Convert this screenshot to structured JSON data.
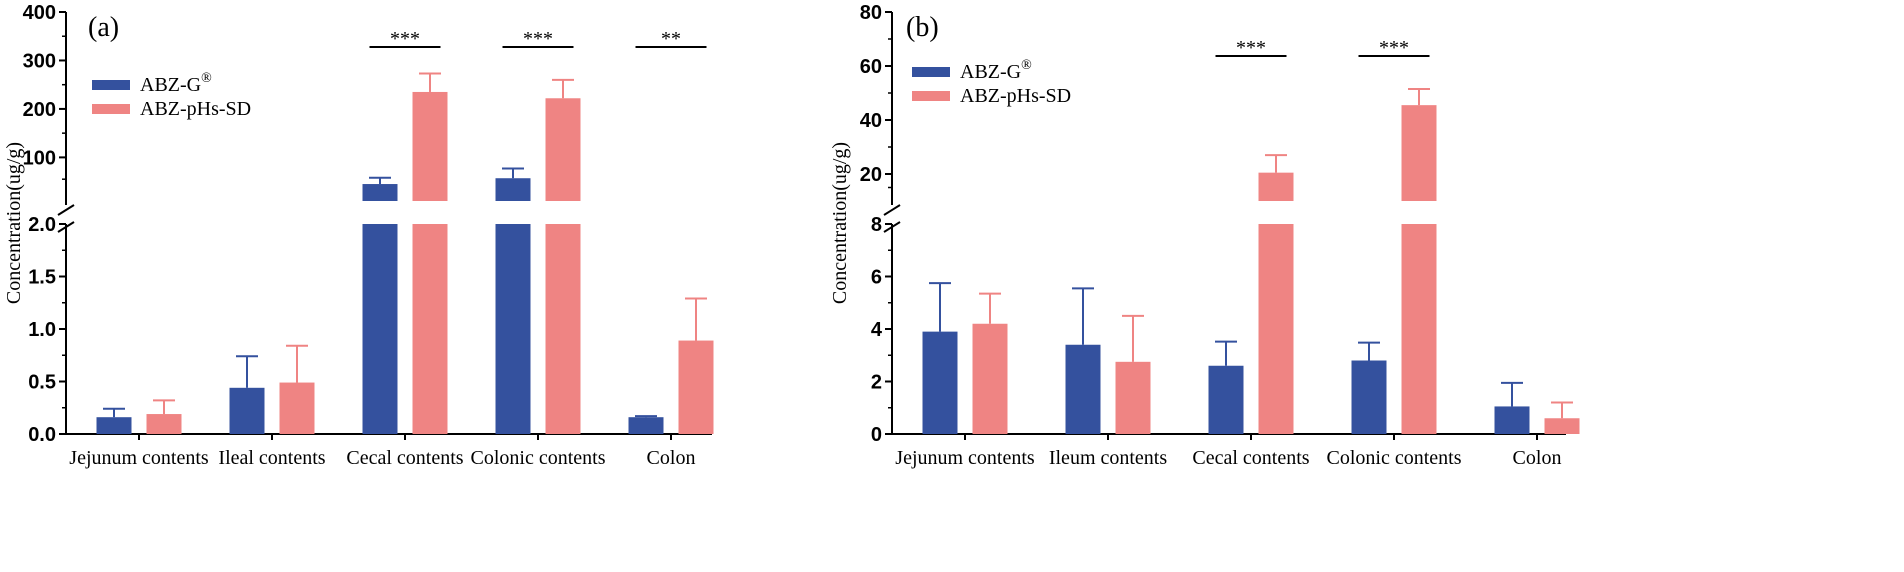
{
  "colors": {
    "abz_g": "#34519e",
    "abz_phs_sd": "#ef8483",
    "axis": "#000000"
  },
  "legend": {
    "abz_g_base": "ABZ-G",
    "abz_g_mark": "®",
    "abz_phs_sd": "ABZ-pHs-SD"
  },
  "chart_data": [
    {
      "type": "bar",
      "panel_label": "(a)",
      "ylabel": "Concentration(ug/g)",
      "xlabel": "",
      "categories": [
        "Jejunum contents",
        "Ileal contents",
        "Cecal contents",
        "Colonic contents",
        "Colon"
      ],
      "series": [
        {
          "name": "ABZ-G®",
          "values": [
            0.16,
            0.44,
            45,
            57,
            0.16
          ],
          "errors": [
            0.08,
            0.3,
            13,
            20,
            0.01
          ]
        },
        {
          "name": "ABZ-pHs-SD",
          "values": [
            0.19,
            0.49,
            235,
            222,
            0.89
          ],
          "errors": [
            0.13,
            0.35,
            38,
            38,
            0.4
          ]
        }
      ],
      "lower_range": [
        0,
        2.0
      ],
      "upper_range": [
        10,
        400
      ],
      "lower_ticks": [
        {
          "value": 0,
          "label": "0.0"
        },
        {
          "value": 0.5,
          "label": "0.5"
        },
        {
          "value": 1.0,
          "label": "1.0"
        },
        {
          "value": 1.5,
          "label": "1.5"
        },
        {
          "value": 2.0,
          "label": "2.0"
        }
      ],
      "upper_ticks": [
        {
          "value": 100,
          "label": "100"
        },
        {
          "value": 200,
          "label": "200"
        },
        {
          "value": 300,
          "label": "300"
        },
        {
          "value": 400,
          "label": "400"
        }
      ],
      "significance": [
        {
          "category": 2,
          "label": "***"
        },
        {
          "category": 3,
          "label": "***"
        },
        {
          "category": 4,
          "label": "**"
        }
      ],
      "legend_position": "upper-left"
    },
    {
      "type": "bar",
      "panel_label": "(b)",
      "ylabel": "Concentration(ug/g)",
      "xlabel": "",
      "categories": [
        "Jejunum contents",
        "Ileum contents",
        "Cecal contents",
        "Colonic contents",
        "Colon"
      ],
      "series": [
        {
          "name": "ABZ-G®",
          "values": [
            3.9,
            3.4,
            2.6,
            2.8,
            1.05
          ],
          "errors": [
            1.85,
            2.15,
            0.92,
            0.68,
            0.9
          ]
        },
        {
          "name": "ABZ-pHs-SD",
          "values": [
            4.2,
            2.75,
            20.5,
            45.5,
            0.6
          ],
          "errors": [
            1.15,
            1.75,
            6.5,
            6.0,
            0.6
          ]
        }
      ],
      "lower_range": [
        0,
        8
      ],
      "upper_range": [
        10,
        80
      ],
      "lower_ticks": [
        {
          "value": 0,
          "label": "0"
        },
        {
          "value": 2,
          "label": "2"
        },
        {
          "value": 4,
          "label": "4"
        },
        {
          "value": 6,
          "label": "6"
        },
        {
          "value": 8,
          "label": "8"
        }
      ],
      "upper_ticks": [
        {
          "value": 20,
          "label": "20"
        },
        {
          "value": 40,
          "label": "40"
        },
        {
          "value": 60,
          "label": "60"
        },
        {
          "value": 80,
          "label": "80"
        }
      ],
      "significance": [
        {
          "category": 2,
          "label": "***"
        },
        {
          "category": 3,
          "label": "***"
        }
      ],
      "legend_position": "upper-left"
    }
  ]
}
